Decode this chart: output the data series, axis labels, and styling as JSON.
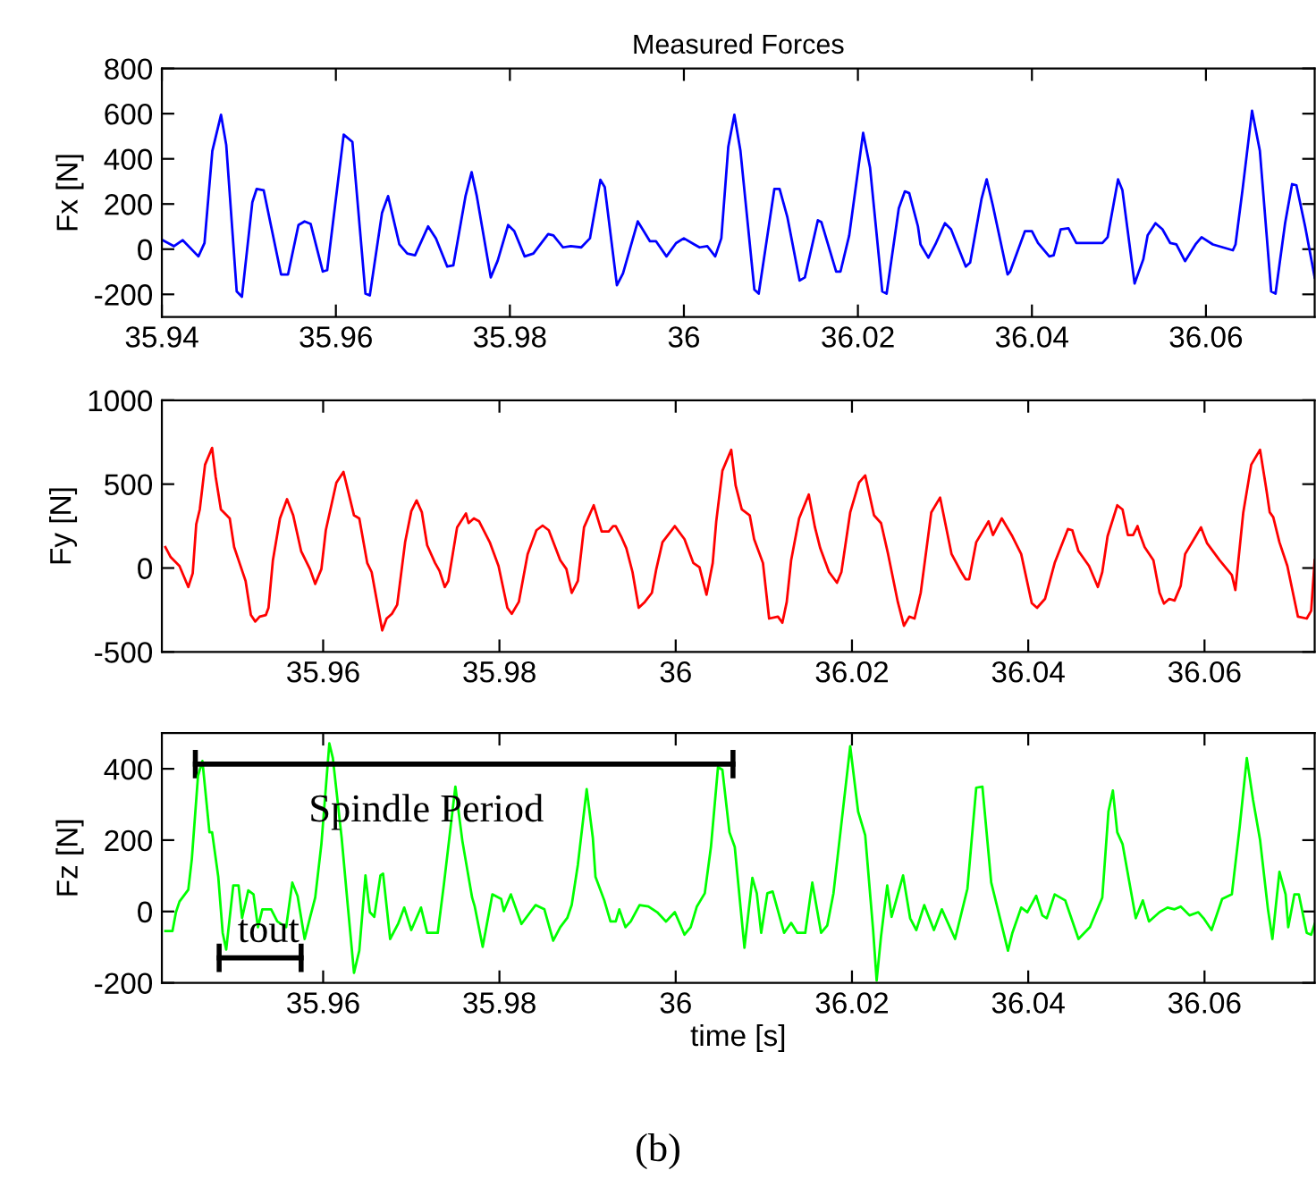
{
  "chart_data": [
    {
      "type": "line",
      "title": "Measured Forces",
      "ylabel": "Fx [N]",
      "xlim": [
        35.94,
        36.0725
      ],
      "xticks": [
        35.94,
        35.96,
        35.98,
        36,
        36.02,
        36.04,
        36.06
      ],
      "ylim": [
        -300,
        800
      ],
      "yticks": [
        -200,
        0,
        200,
        400,
        600,
        800
      ],
      "grid": false,
      "x": [
        35.9401,
        35.9414,
        35.9424,
        35.9442,
        35.9449,
        35.9458,
        35.9468,
        35.9474,
        35.9486,
        35.9492,
        35.9504,
        35.9509,
        35.9517,
        35.9537,
        35.9545,
        35.9557,
        35.9564,
        35.9571,
        35.9585,
        35.959,
        35.9609,
        35.9619,
        35.9634,
        35.9639,
        35.9653,
        35.966,
        35.9673,
        35.9682,
        35.9691,
        35.9706,
        35.9715,
        35.9728,
        35.9735,
        35.9749,
        35.9756,
        35.9762,
        35.9778,
        35.9786,
        35.9798,
        35.9805,
        35.9817,
        35.9827,
        35.9844,
        35.985,
        35.9861,
        35.987,
        35.9882,
        35.9892,
        35.9904,
        35.9909,
        35.9923,
        35.993,
        35.9947,
        35.9961,
        35.9968,
        35.998,
        35.9991,
        36.0,
        36.0012,
        36.0018,
        36.0027,
        36.0036,
        36.0043,
        36.0051,
        36.0058,
        36.0065,
        36.0081,
        36.0086,
        36.0104,
        36.011,
        36.0119,
        36.0133,
        36.0139,
        36.0154,
        36.0158,
        36.0175,
        36.018,
        36.019,
        36.0206,
        36.0214,
        36.0228,
        36.0233,
        36.0247,
        36.0254,
        36.0259,
        36.0269,
        36.0272,
        36.0281,
        36.0289,
        36.03,
        36.0307,
        36.0324,
        36.0329,
        36.0342,
        36.0348,
        36.0355,
        36.0372,
        36.0375,
        36.0392,
        36.04,
        36.0407,
        36.042,
        36.0425,
        36.0433,
        36.0442,
        36.0451,
        36.0481,
        36.0487,
        36.0499,
        36.0504,
        36.0518,
        36.0528,
        36.0533,
        36.0542,
        36.055,
        36.0559,
        36.0566,
        36.0576,
        36.0588,
        36.0595,
        36.0608,
        36.0631,
        36.0634,
        36.0642,
        36.0653,
        36.0662,
        36.0675,
        36.068,
        36.0691,
        36.0699,
        36.0704,
        36.0714,
        36.0725
      ],
      "series": [
        {
          "color": "#0000ff",
          "values": [
            40,
            13,
            40,
            -32,
            27,
            435,
            595,
            461,
            -187,
            -211,
            208,
            267,
            261,
            -112,
            -112,
            107,
            123,
            112,
            -99,
            -93,
            507,
            475,
            -197,
            -205,
            160,
            235,
            21,
            -19,
            -27,
            101,
            48,
            -77,
            -72,
            235,
            341,
            235,
            -125,
            -51,
            107,
            80,
            -32,
            -19,
            67,
            61,
            8,
            13,
            8,
            48,
            307,
            275,
            -160,
            -107,
            123,
            35,
            35,
            -32,
            27,
            48,
            21,
            8,
            13,
            -32,
            48,
            453,
            595,
            435,
            -179,
            -197,
            267,
            267,
            141,
            -139,
            -125,
            128,
            120,
            -99,
            -99,
            61,
            515,
            360,
            -187,
            -197,
            181,
            256,
            248,
            101,
            21,
            -38,
            21,
            115,
            88,
            -77,
            -59,
            221,
            309,
            195,
            -112,
            -99,
            80,
            80,
            27,
            -32,
            -27,
            88,
            93,
            27,
            27,
            53,
            309,
            261,
            -152,
            -45,
            61,
            115,
            88,
            27,
            21,
            -53,
            21,
            53,
            21,
            -5,
            21,
            261,
            613,
            435,
            -187,
            -197,
            115,
            288,
            283,
            101,
            -125
          ]
        }
      ]
    },
    {
      "type": "line",
      "ylabel": "Fy [N]",
      "xlim": [
        35.9417,
        36.0725
      ],
      "xticks": [
        35.96,
        35.98,
        36,
        36.02,
        36.04,
        36.06
      ],
      "ylim": [
        -500,
        1000
      ],
      "yticks": [
        -500,
        0,
        500,
        1000
      ],
      "grid": false,
      "x": [
        35.9421,
        35.9427,
        35.9437,
        35.9447,
        35.9452,
        35.9456,
        35.946,
        35.9466,
        35.9474,
        35.9478,
        35.9484,
        35.9494,
        35.9499,
        35.9504,
        35.9512,
        35.9518,
        35.9523,
        35.9528,
        35.9535,
        35.9538,
        35.9543,
        35.9551,
        35.9559,
        35.9566,
        35.9575,
        35.9585,
        35.9591,
        35.9598,
        35.9603,
        35.9615,
        35.9623,
        35.9635,
        35.9641,
        35.965,
        35.9655,
        35.9667,
        35.9672,
        35.9678,
        35.9684,
        35.9693,
        35.97,
        35.9706,
        35.9712,
        35.9718,
        35.9727,
        35.9732,
        35.9738,
        35.9742,
        35.9752,
        35.9762,
        35.9765,
        35.9771,
        35.9777,
        35.9789,
        35.9799,
        35.9809,
        35.9814,
        35.9822,
        35.9832,
        35.9842,
        35.9849,
        35.9856,
        35.9869,
        35.9876,
        35.9882,
        35.9889,
        35.9896,
        35.9907,
        35.9916,
        35.9924,
        35.9929,
        35.9932,
        35.9938,
        35.9944,
        35.9951,
        35.9958,
        35.9965,
        35.9973,
        35.9978,
        35.9985,
        35.9999,
        36.001,
        36.002,
        36.0027,
        36.0035,
        36.0042,
        36.0046,
        36.0053,
        36.0063,
        36.0068,
        36.0075,
        36.0084,
        36.0089,
        36.0099,
        36.0106,
        36.0116,
        36.0121,
        36.0126,
        36.0131,
        36.014,
        36.0151,
        36.0158,
        36.0164,
        36.0174,
        36.0183,
        36.0188,
        36.0198,
        36.0208,
        36.0215,
        36.0225,
        36.0233,
        36.0241,
        36.0252,
        36.0259,
        36.0265,
        36.0271,
        36.0278,
        36.029,
        36.03,
        36.0313,
        36.0324,
        36.0329,
        36.0333,
        36.0341,
        36.0355,
        36.036,
        36.037,
        36.0382,
        36.0392,
        36.0404,
        36.041,
        36.0419,
        36.043,
        36.0445,
        36.045,
        36.0457,
        36.0469,
        36.0479,
        36.0484,
        36.049,
        36.0501,
        36.0507,
        36.0513,
        36.0519,
        36.0524,
        36.0527,
        36.0532,
        36.0542,
        36.0549,
        36.0554,
        36.056,
        36.0566,
        36.0573,
        36.0578,
        36.059,
        36.0596,
        36.0603,
        36.0617,
        36.0631,
        36.0635,
        36.0644,
        36.0653,
        36.0663,
        36.067,
        36.0674,
        36.0678,
        36.0685,
        36.0694,
        36.0706,
        36.0716,
        36.0721,
        36.0725
      ],
      "series": [
        {
          "color": "#ff0000",
          "values": [
            125,
            65,
            12,
            -113,
            -31,
            261,
            349,
            616,
            716,
            545,
            349,
            296,
            125,
            47,
            -77,
            -280,
            -319,
            -290,
            -280,
            -237,
            47,
            296,
            410,
            314,
            101,
            -6,
            -95,
            -6,
            225,
            509,
            573,
            314,
            296,
            30,
            -24,
            -372,
            -301,
            -273,
            -219,
            154,
            339,
            403,
            332,
            136,
            30,
            -17,
            -113,
            -77,
            243,
            325,
            268,
            296,
            278,
            154,
            12,
            -237,
            -273,
            -202,
            83,
            225,
            253,
            225,
            47,
            -6,
            -148,
            -77,
            243,
            374,
            218,
            218,
            250,
            250,
            189,
            118,
            -24,
            -237,
            -202,
            -148,
            -6,
            154,
            250,
            172,
            30,
            5,
            -159,
            30,
            278,
            580,
            705,
            492,
            349,
            314,
            172,
            30,
            -301,
            -290,
            -326,
            -202,
            47,
            296,
            438,
            243,
            118,
            -24,
            -88,
            -24,
            332,
            509,
            552,
            314,
            268,
            83,
            -202,
            -344,
            -290,
            -301,
            -148,
            332,
            420,
            83,
            -24,
            -67,
            -67,
            154,
            278,
            197,
            296,
            189,
            83,
            -209,
            -237,
            -184,
            30,
            232,
            225,
            101,
            12,
            -113,
            -24,
            189,
            374,
            349,
            197,
            197,
            250,
            197,
            125,
            47,
            -148,
            -212,
            -184,
            -194,
            -106,
            83,
            189,
            243,
            147,
            47,
            -42,
            -131,
            332,
            616,
            705,
            474,
            332,
            303,
            154,
            12,
            -290,
            -301,
            -255,
            47
          ]
        }
      ]
    },
    {
      "type": "line",
      "ylabel": "Fz [N]",
      "xlabel": "time [s]",
      "xlim": [
        35.9417,
        36.0725
      ],
      "xticks": [
        35.96,
        35.98,
        36,
        36.02,
        36.04,
        36.06
      ],
      "ylim": [
        -200,
        500
      ],
      "yticks": [
        -200,
        0,
        200,
        400
      ],
      "grid": false,
      "annotations": [
        {
          "text": "Spindle Period",
          "x": 35.9717,
          "y": 413
        },
        {
          "text": "tout",
          "x": 35.9538,
          "y": -130
        },
        "(b)"
      ],
      "x": [
        35.9421,
        35.9429,
        35.9433,
        35.9437,
        35.9447,
        35.9451,
        35.9458,
        35.9463,
        35.9471,
        35.9474,
        35.9481,
        35.9486,
        35.949,
        35.9498,
        35.9504,
        35.9508,
        35.9515,
        35.9521,
        35.9526,
        35.9531,
        35.9541,
        35.9548,
        35.9558,
        35.9565,
        35.9571,
        35.9579,
        35.9585,
        35.9591,
        35.9598,
        35.9607,
        35.9611,
        35.9621,
        35.9628,
        35.9635,
        35.9641,
        35.9648,
        35.9653,
        35.9658,
        35.9665,
        35.9668,
        35.9676,
        35.9685,
        35.9692,
        35.97,
        35.9711,
        35.9718,
        35.973,
        35.9737,
        35.975,
        35.9758,
        35.9769,
        35.9772,
        35.9781,
        35.9792,
        35.9802,
        35.9805,
        35.9813,
        35.9825,
        35.9841,
        35.9851,
        35.9861,
        35.9869,
        35.9877,
        35.9882,
        35.9889,
        35.9899,
        35.9906,
        35.9909,
        35.9919,
        35.9926,
        35.9932,
        35.9936,
        35.9943,
        35.9949,
        35.9959,
        35.9969,
        35.9979,
        35.9989,
        35.9999,
        36.001,
        36.0017,
        36.0024,
        36.0033,
        36.004,
        36.0048,
        36.0053,
        36.0061,
        36.0067,
        36.0078,
        36.0087,
        36.0092,
        36.0097,
        36.0104,
        36.011,
        36.0123,
        36.0131,
        36.0138,
        36.0147,
        36.0155,
        36.0165,
        36.0172,
        36.0179,
        36.0198,
        36.0207,
        36.0215,
        36.0224,
        36.0228,
        36.0233,
        36.024,
        36.0245,
        36.0252,
        36.0258,
        36.0266,
        36.0273,
        36.0282,
        36.0293,
        36.0302,
        36.0317,
        36.0331,
        36.0341,
        36.0348,
        36.0358,
        36.0368,
        36.0377,
        36.0382,
        36.0392,
        36.0399,
        36.0409,
        36.0416,
        36.0421,
        36.043,
        36.0442,
        36.0457,
        36.047,
        36.0484,
        36.0491,
        36.0496,
        36.0501,
        36.0507,
        36.0522,
        36.053,
        36.0537,
        36.0549,
        36.0558,
        36.0566,
        36.0573,
        36.0583,
        36.0593,
        36.0599,
        36.0608,
        36.062,
        36.0631,
        36.064,
        36.0648,
        36.0655,
        36.0663,
        36.0672,
        36.0677,
        36.0685,
        36.0692,
        36.0695,
        36.0702,
        36.0707,
        36.0716,
        36.0721,
        36.0725
      ],
      "series": [
        {
          "color": "#000000",
          "x": [
            35.9455,
            36.0065
          ],
          "values": [
            413,
            413
          ],
          "errors": [
            40,
            40
          ]
        },
        {
          "color": "#000000",
          "x": [
            35.9482,
            35.9575
          ],
          "values": [
            -130,
            -130
          ],
          "errors": [
            40,
            40
          ]
        },
        {
          "color": "#00ff00",
          "values": [
            -55,
            -55,
            -2,
            28,
            61,
            147,
            380,
            422,
            222,
            222,
            97,
            -60,
            -107,
            73,
            73,
            -18,
            59,
            48,
            -44,
            6,
            6,
            -28,
            -44,
            81,
            43,
            -77,
            -18,
            39,
            189,
            471,
            430,
            206,
            15,
            -172,
            -110,
            101,
            -2,
            -15,
            101,
            106,
            -77,
            -35,
            11,
            -52,
            11,
            -60,
            -60,
            76,
            350,
            197,
            39,
            14,
            -99,
            48,
            35,
            1,
            48,
            -35,
            18,
            6,
            -82,
            -44,
            -18,
            18,
            131,
            343,
            206,
            97,
            31,
            -28,
            -28,
            6,
            -44,
            -28,
            18,
            14,
            -2,
            -28,
            -2,
            -65,
            -44,
            14,
            51,
            181,
            405,
            397,
            222,
            181,
            -102,
            94,
            51,
            -60,
            51,
            56,
            -60,
            -32,
            -60,
            -60,
            81,
            -60,
            -39,
            51,
            463,
            280,
            214,
            -52,
            -193,
            -69,
            73,
            -15,
            48,
            101,
            -19,
            -52,
            18,
            -52,
            6,
            -77,
            64,
            347,
            350,
            81,
            -19,
            -110,
            -60,
            11,
            -2,
            44,
            -11,
            -19,
            48,
            31,
            -77,
            -44,
            39,
            280,
            339,
            222,
            189,
            -19,
            31,
            -28,
            -2,
            11,
            6,
            14,
            -11,
            -2,
            -19,
            -52,
            35,
            48,
            239,
            430,
            314,
            201,
            6,
            -77,
            111,
            48,
            -44,
            48,
            48,
            -60,
            -65,
            -35
          ]
        }
      ]
    }
  ]
}
